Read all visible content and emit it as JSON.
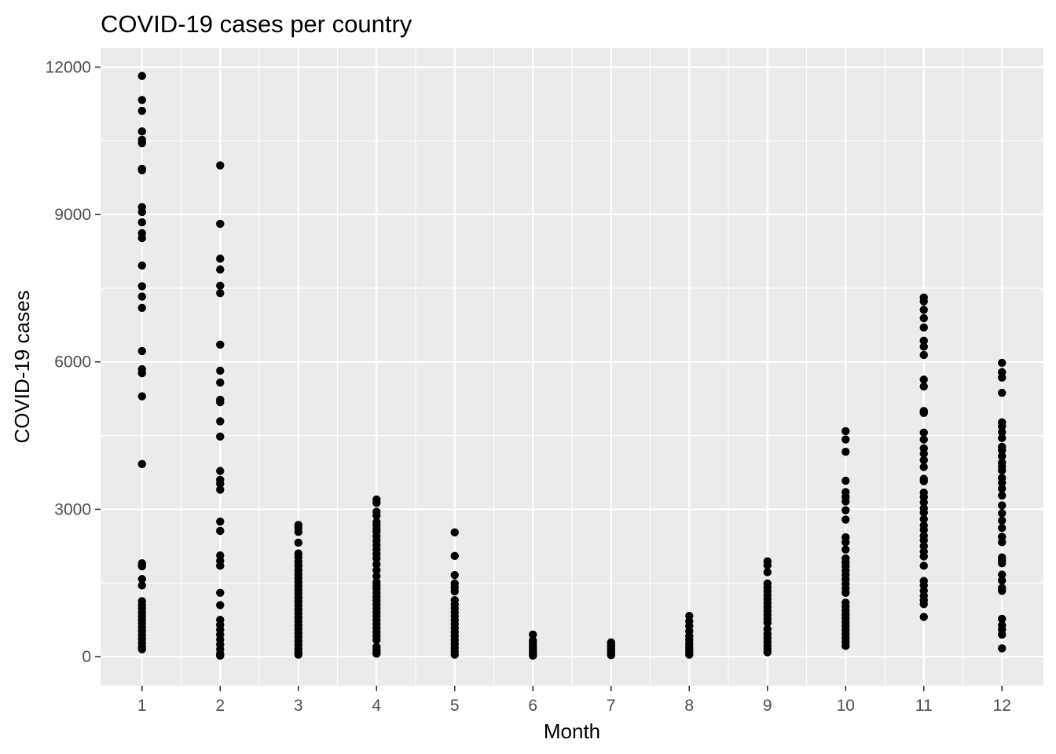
{
  "chart_data": {
    "type": "scatter",
    "title": "COVID-19 cases per country",
    "xlabel": "Month",
    "ylabel": "COVID-19 cases",
    "xlim": [
      0.47,
      12.53
    ],
    "ylim": [
      -590,
      12390
    ],
    "x_ticks": [
      1,
      2,
      3,
      4,
      5,
      6,
      7,
      8,
      9,
      10,
      11,
      12
    ],
    "x_tick_labels": [
      "1",
      "2",
      "3",
      "4",
      "5",
      "6",
      "7",
      "8",
      "9",
      "10",
      "11",
      "12"
    ],
    "y_ticks": [
      0,
      3000,
      6000,
      9000,
      12000
    ],
    "y_tick_labels": [
      "0",
      "3000",
      "6000",
      "9000",
      "12000"
    ],
    "grid": true,
    "series": [
      {
        "name": "cases",
        "color": "#000000",
        "points": [
          {
            "x": 1,
            "values": [
              11820,
              11330,
              11110,
              10690,
              10520,
              10450,
              9930,
              9900,
              9150,
              9050,
              8840,
              8620,
              8520,
              7960,
              7540,
              7330,
              7100,
              6220,
              5850,
              5770,
              5300,
              3920,
              1900,
              1840,
              1580,
              1450,
              1130,
              1050,
              980,
              900,
              820,
              750,
              680,
              600,
              520,
              440,
              360,
              280,
              200,
              150
            ]
          },
          {
            "x": 2,
            "values": [
              10000,
              8810,
              8100,
              7880,
              7550,
              7400,
              6350,
              5820,
              5580,
              5230,
              5180,
              4790,
              4480,
              3780,
              3600,
              3520,
              3400,
              2750,
              2560,
              2060,
              1950,
              1850,
              1300,
              1050,
              750,
              650,
              550,
              450,
              350,
              250,
              150,
              60,
              20
            ]
          },
          {
            "x": 3,
            "values": [
              2680,
              2620,
              2540,
              2320,
              2100,
              2020,
              1930,
              1850,
              1760,
              1680,
              1600,
              1520,
              1440,
              1360,
              1280,
              1200,
              1120,
              1040,
              960,
              880,
              800,
              720,
              640,
              560,
              480,
              400,
              320,
              240,
              160,
              90,
              40
            ]
          },
          {
            "x": 4,
            "values": [
              3200,
              3130,
              2950,
              2870,
              2740,
              2680,
              2600,
              2540,
              2450,
              2360,
              2270,
              2180,
              2090,
              2000,
              1880,
              1760,
              1640,
              1520,
              1450,
              1380,
              1300,
              1220,
              1140,
              1060,
              980,
              900,
              820,
              740,
              660,
              580,
              500,
              420,
              340,
              200,
              150,
              100,
              60
            ]
          },
          {
            "x": 5,
            "values": [
              2530,
              2050,
              1660,
              1490,
              1410,
              1330,
              1150,
              1060,
              980,
              900,
              820,
              740,
              660,
              580,
              500,
              420,
              340,
              260,
              180,
              100,
              40
            ]
          },
          {
            "x": 6,
            "values": [
              450,
              330,
              280,
              230,
              180,
              130,
              90,
              50,
              20
            ]
          },
          {
            "x": 7,
            "values": [
              290,
              250,
              210,
              170,
              130,
              90,
              60,
              30
            ]
          },
          {
            "x": 8,
            "values": [
              830,
              720,
              620,
              520,
              420,
              340,
              260,
              200,
              140,
              90,
              40
            ]
          },
          {
            "x": 9,
            "values": [
              1940,
              1860,
              1720,
              1490,
              1410,
              1330,
              1250,
              1170,
              1090,
              1010,
              930,
              850,
              770,
              690,
              560,
              460,
              380,
              300,
              230,
              160,
              90
            ]
          },
          {
            "x": 10,
            "values": [
              4590,
              4420,
              4170,
              3580,
              3350,
              3250,
              3160,
              2980,
              2790,
              2430,
              2330,
              2180,
              2000,
              1920,
              1840,
              1750,
              1660,
              1570,
              1480,
              1390,
              1300,
              1100,
              1020,
              940,
              860,
              780,
              700,
              620,
              540,
              460,
              380,
              300,
              220
            ]
          },
          {
            "x": 11,
            "values": [
              7310,
              7230,
              7060,
              6890,
              6700,
              6430,
              6310,
              6140,
              5640,
              5500,
              5000,
              4960,
              4560,
              4420,
              4240,
              4130,
              4000,
              3860,
              3620,
              3570,
              3340,
              3250,
              3140,
              3020,
              2930,
              2800,
              2670,
              2580,
              2460,
              2370,
              2250,
              2140,
              2040,
              1850,
              1540,
              1450,
              1340,
              1240,
              1150,
              1070,
              810
            ]
          },
          {
            "x": 12,
            "values": [
              5980,
              5790,
              5680,
              5370,
              4770,
              4690,
              4570,
              4450,
              4270,
              4200,
              4080,
              3950,
              3870,
              3790,
              3640,
              3540,
              3420,
              3280,
              3080,
              2920,
              2770,
              2620,
              2440,
              2330,
              2020,
              1960,
              1900,
              1670,
              1550,
              1400,
              1340,
              770,
              640,
              550,
              450,
              170
            ]
          }
        ]
      }
    ]
  }
}
